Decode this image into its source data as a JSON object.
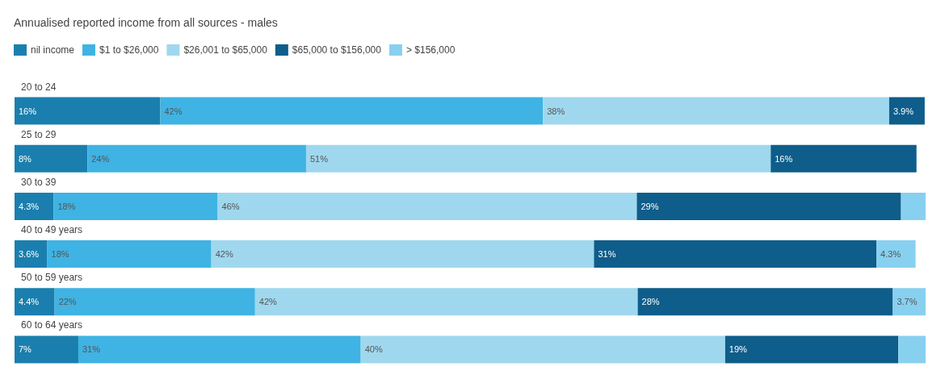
{
  "chart_data": {
    "type": "bar",
    "orientation": "horizontal",
    "stacked": true,
    "title": "Annualised reported income from all sources - males",
    "categories": [
      "20 to 24",
      "25 to 29",
      "30 to 39",
      "40 to 49 years",
      "50 to 59 years",
      "60 to 64 years"
    ],
    "series": [
      {
        "name": "nil income",
        "color": "#1a7fae",
        "values": [
          16,
          8,
          4.3,
          3.6,
          4.4,
          7
        ],
        "value_labels": [
          "16%",
          "8%",
          "4.3%",
          "3.6%",
          "4.4%",
          "7%"
        ]
      },
      {
        "name": "$1 to $26,000",
        "color": "#3fb3e3",
        "values": [
          42,
          24,
          18,
          18,
          22,
          31
        ],
        "value_labels": [
          "42%",
          "24%",
          "18%",
          "18%",
          "22%",
          "31%"
        ]
      },
      {
        "name": "$26,001 to $65,000",
        "color": "#9fd8ee",
        "values": [
          38,
          51,
          46,
          42,
          42,
          40
        ],
        "value_labels": [
          "38%",
          "51%",
          "46%",
          "42%",
          "42%",
          "40%"
        ]
      },
      {
        "name": "$65,000 to $156,000",
        "color": "#0e5d8a",
        "values": [
          3.9,
          16,
          29,
          31,
          28,
          19
        ],
        "value_labels": [
          "3.9%",
          "16%",
          "29%",
          "31%",
          "28%",
          "19%"
        ]
      },
      {
        "name": "> $156,000",
        "color": "#88d0ef",
        "values": [
          null,
          null,
          2.7,
          4.3,
          3.7,
          3
        ],
        "value_labels": [
          null,
          null,
          null,
          "4.3%",
          "3.7%",
          null
        ]
      }
    ],
    "xlim": [
      0,
      100
    ],
    "tick_labels": "y",
    "legend": "top left"
  }
}
